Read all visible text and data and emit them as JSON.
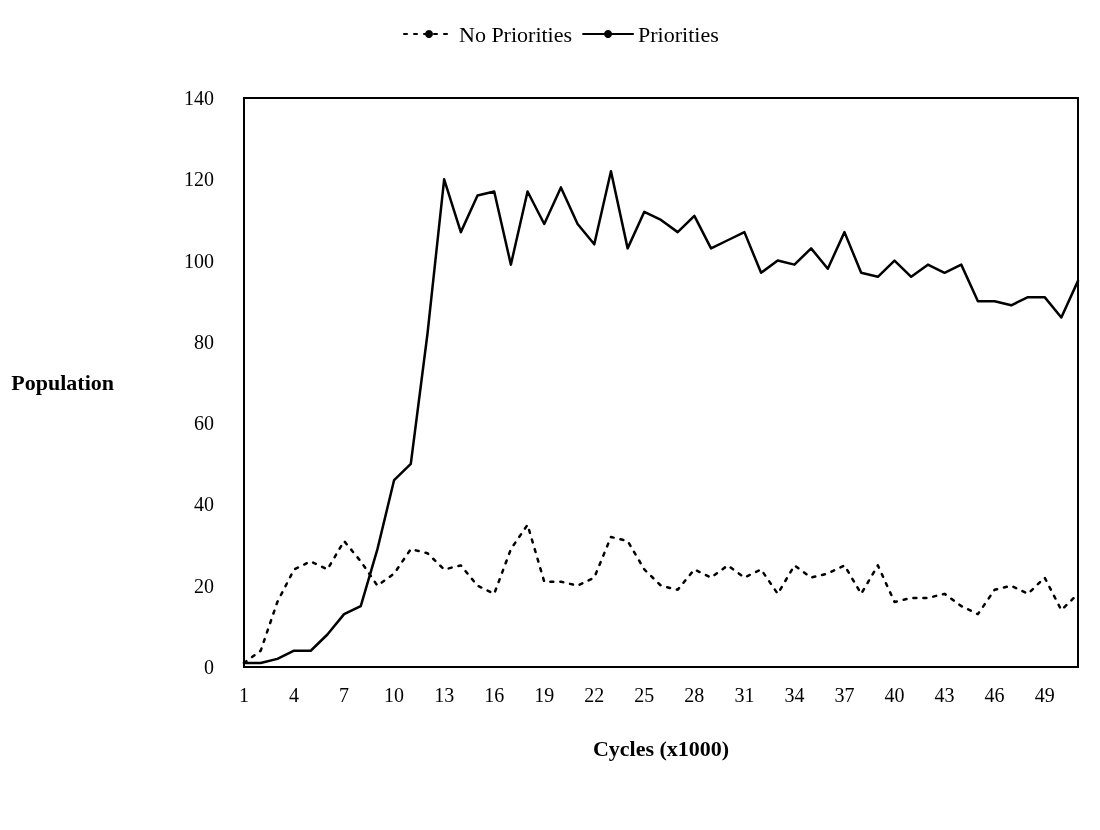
{
  "chart_data": {
    "type": "line",
    "xlabel": "Cycles (x1000)",
    "ylabel": "Population",
    "categories": [
      "1",
      null,
      null,
      "4",
      null,
      null,
      "7",
      null,
      null,
      "10",
      null,
      null,
      "13",
      null,
      null,
      "16",
      null,
      null,
      "19",
      null,
      null,
      "22",
      null,
      null,
      "25",
      null,
      null,
      "28",
      null,
      null,
      "31",
      null,
      null,
      "34",
      null,
      null,
      "37",
      null,
      null,
      "40",
      null,
      null,
      "43",
      null,
      null,
      "46",
      null,
      null,
      "49",
      null,
      null
    ],
    "series": [
      {
        "name": "No Priorities",
        "color": "#000000",
        "line_style": "dotted",
        "values": [
          1,
          4,
          16,
          24,
          26,
          24,
          31,
          26,
          20,
          23,
          29,
          28,
          24,
          25,
          20,
          18,
          29,
          35,
          21,
          21,
          20,
          22,
          32,
          31,
          24,
          20,
          19,
          24,
          22,
          25,
          22,
          24,
          18,
          25,
          22,
          23,
          25,
          18,
          25,
          16,
          17,
          17,
          18,
          15,
          13,
          19,
          20,
          18,
          22,
          14,
          18
        ]
      },
      {
        "name": "Priorities",
        "color": "#000000",
        "line_style": "solid",
        "values": [
          1,
          1,
          2,
          4,
          4,
          8,
          13,
          15,
          29,
          46,
          50,
          82,
          120,
          107,
          116,
          117,
          99,
          117,
          109,
          118,
          109,
          104,
          122,
          103,
          112,
          110,
          107,
          111,
          103,
          105,
          107,
          97,
          100,
          99,
          103,
          98,
          107,
          97,
          96,
          100,
          96,
          99,
          97,
          99,
          90,
          90,
          89,
          91,
          91,
          86,
          95
        ]
      }
    ],
    "ylim": [
      0,
      140
    ],
    "yticks": [
      0,
      20,
      40,
      60,
      80,
      100,
      120,
      140
    ],
    "grid": false,
    "legend": "top",
    "marker": "none"
  }
}
